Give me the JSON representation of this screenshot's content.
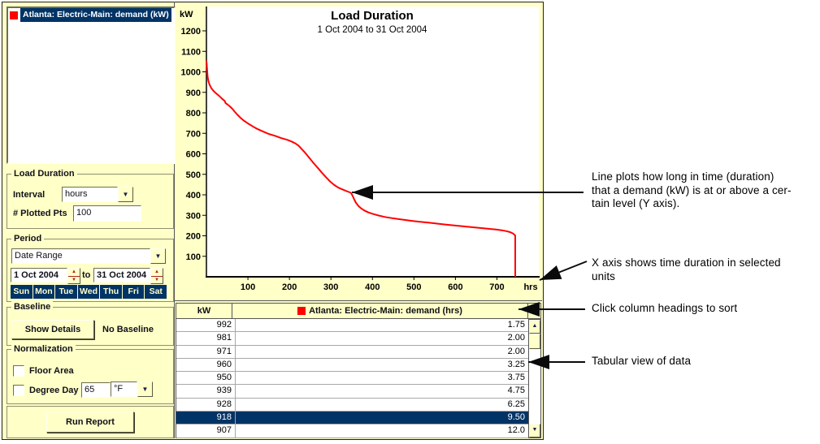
{
  "colors": {
    "panel_yellow": "#ffffc8",
    "accent_navy": "#003366",
    "series_red": "#ff0000"
  },
  "legend": {
    "items": [
      {
        "label": "Atlanta: Electric-Main: demand (kW)",
        "color": "#ff0000"
      }
    ]
  },
  "controls": {
    "load_duration": {
      "title": "Load Duration",
      "interval_label": "Interval",
      "interval_value": "hours",
      "plotted_pts_label": "# Plotted Pts",
      "plotted_pts_value": "100"
    },
    "period": {
      "title": "Period",
      "range_type": "Date Range",
      "start_date": "1 Oct 2004",
      "to_label": "to",
      "end_date": "31 Oct 2004",
      "days": [
        "Sun",
        "Mon",
        "Tue",
        "Wed",
        "Thu",
        "Fri",
        "Sat"
      ]
    },
    "baseline": {
      "title": "Baseline",
      "show_details_label": "Show Details",
      "status": "No Baseline"
    },
    "normalization": {
      "title": "Normalization",
      "floor_area_label": "Floor Area",
      "degree_day_label": "Degree Day",
      "degree_day_value": "65",
      "degree_day_unit": "°F"
    },
    "run_report_label": "Run Report"
  },
  "chart_data": {
    "type": "line",
    "title": "Load Duration",
    "subtitle": "1 Oct 2004 to 31 Oct 2004",
    "xlabel": "hrs",
    "ylabel": "kW",
    "x_unit": "hrs",
    "y_unit": "kW",
    "xlim": [
      0,
      800
    ],
    "ylim": [
      0,
      1320
    ],
    "x_ticks": [
      100,
      200,
      300,
      400,
      500,
      600,
      700
    ],
    "y_ticks": [
      1200,
      1100,
      1000,
      900,
      800,
      700,
      600,
      500,
      400,
      300,
      200,
      100
    ],
    "grid": false,
    "legend_position": "none",
    "series": [
      {
        "name": "Atlanta: Electric-Main: demand (kW)",
        "color": "#ff0000",
        "points": [
          [
            0,
            1055
          ],
          [
            1,
            1030
          ],
          [
            2,
            1000
          ],
          [
            3,
            975
          ],
          [
            5,
            952
          ],
          [
            8,
            935
          ],
          [
            12,
            920
          ],
          [
            18,
            905
          ],
          [
            25,
            892
          ],
          [
            32,
            880
          ],
          [
            38,
            868
          ],
          [
            44,
            858
          ],
          [
            46,
            848
          ],
          [
            50,
            842
          ],
          [
            56,
            832
          ],
          [
            62,
            820
          ],
          [
            68,
            806
          ],
          [
            75,
            790
          ],
          [
            82,
            776
          ],
          [
            90,
            762
          ],
          [
            100,
            748
          ],
          [
            110,
            736
          ],
          [
            122,
            722
          ],
          [
            135,
            710
          ],
          [
            150,
            697
          ],
          [
            165,
            688
          ],
          [
            180,
            677
          ],
          [
            195,
            668
          ],
          [
            205,
            660
          ],
          [
            215,
            650
          ],
          [
            222,
            640
          ],
          [
            230,
            622
          ],
          [
            238,
            605
          ],
          [
            248,
            580
          ],
          [
            258,
            555
          ],
          [
            268,
            532
          ],
          [
            278,
            508
          ],
          [
            288,
            486
          ],
          [
            298,
            465
          ],
          [
            308,
            448
          ],
          [
            318,
            435
          ],
          [
            328,
            426
          ],
          [
            338,
            418
          ],
          [
            348,
            410
          ],
          [
            352,
            396
          ],
          [
            356,
            378
          ],
          [
            360,
            362
          ],
          [
            366,
            346
          ],
          [
            372,
            335
          ],
          [
            380,
            324
          ],
          [
            390,
            314
          ],
          [
            402,
            306
          ],
          [
            415,
            299
          ],
          [
            430,
            292
          ],
          [
            448,
            286
          ],
          [
            468,
            280
          ],
          [
            490,
            274
          ],
          [
            512,
            269
          ],
          [
            535,
            264
          ],
          [
            558,
            259
          ],
          [
            580,
            254
          ],
          [
            600,
            250
          ],
          [
            620,
            246
          ],
          [
            640,
            242
          ],
          [
            660,
            238
          ],
          [
            680,
            234
          ],
          [
            700,
            230
          ],
          [
            712,
            227
          ],
          [
            722,
            223
          ],
          [
            732,
            218
          ],
          [
            738,
            212
          ],
          [
            742,
            206
          ],
          [
            744,
            200
          ],
          [
            744,
            0
          ]
        ]
      }
    ]
  },
  "table": {
    "columns": [
      "kW",
      "Atlanta: Electric-Main: demand (hrs)"
    ],
    "header_icon_color": "#ff0000",
    "rows": [
      {
        "kw": "992",
        "hrs": "1.75"
      },
      {
        "kw": "981",
        "hrs": "2.00"
      },
      {
        "kw": "971",
        "hrs": "2.00"
      },
      {
        "kw": "960",
        "hrs": "3.25"
      },
      {
        "kw": "950",
        "hrs": "3.75"
      },
      {
        "kw": "939",
        "hrs": "4.75"
      },
      {
        "kw": "928",
        "hrs": "6.25"
      },
      {
        "kw": "918",
        "hrs": "9.50"
      },
      {
        "kw": "907",
        "hrs": "12.0"
      }
    ],
    "selected_kw": "918"
  },
  "annotations": {
    "line_plot": "Line plots how long in time (duration)\nthat a demand (kW) is at or above a cer-\ntain level (Y axis).",
    "x_axis": "X axis shows time duration in selected\nunits",
    "sort": "Click column headings to sort",
    "tabular": "Tabular view of data"
  }
}
